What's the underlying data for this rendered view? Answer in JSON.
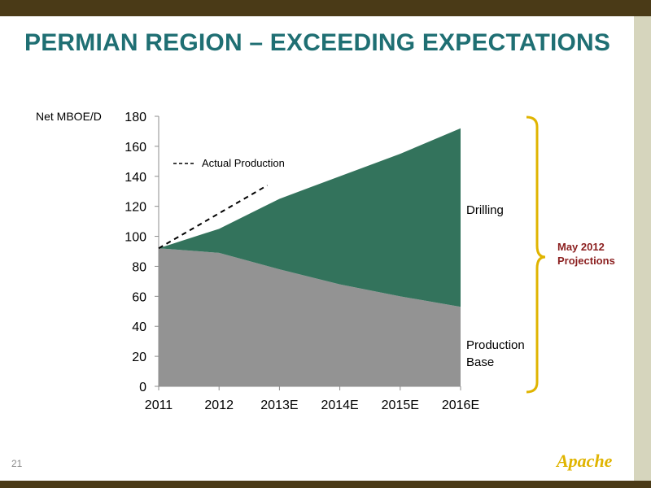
{
  "slide": {
    "title": "PERMIAN REGION – EXCEEDING EXPECTATIONS",
    "page_number": "21",
    "logo_text": "Apache",
    "projection_label_line1": "May 2012",
    "projection_label_line2": "Projections"
  },
  "colors": {
    "title": "#1f6f73",
    "production_base": "#939393",
    "drilling": "#33735c",
    "bracket": "#e0b400",
    "projection_label": "#8b1f1f",
    "frame_bar": "#4a3a17"
  },
  "chart_data": {
    "type": "area",
    "categories": [
      "2011",
      "2012",
      "2013E",
      "2014E",
      "2015E",
      "2016E"
    ],
    "ylabel": "Net MBOE/D",
    "ylim": [
      0,
      180
    ],
    "yticks": [
      0,
      20,
      40,
      60,
      80,
      100,
      120,
      140,
      160,
      180
    ],
    "stacked": true,
    "series": [
      {
        "name": "Production Base",
        "label_line1": "Production",
        "label_line2": "Base",
        "values": [
          92,
          89,
          78,
          68,
          60,
          53
        ]
      },
      {
        "name": "Drilling",
        "label_line1": "Drilling",
        "values": [
          0,
          16,
          47,
          72,
          95,
          119
        ]
      }
    ],
    "actual_production": {
      "name": "Actual Production",
      "style": "dashed",
      "points": [
        [
          2011,
          92
        ],
        [
          2012.8,
          134
        ]
      ]
    },
    "grid": false,
    "legend": "top-left"
  }
}
